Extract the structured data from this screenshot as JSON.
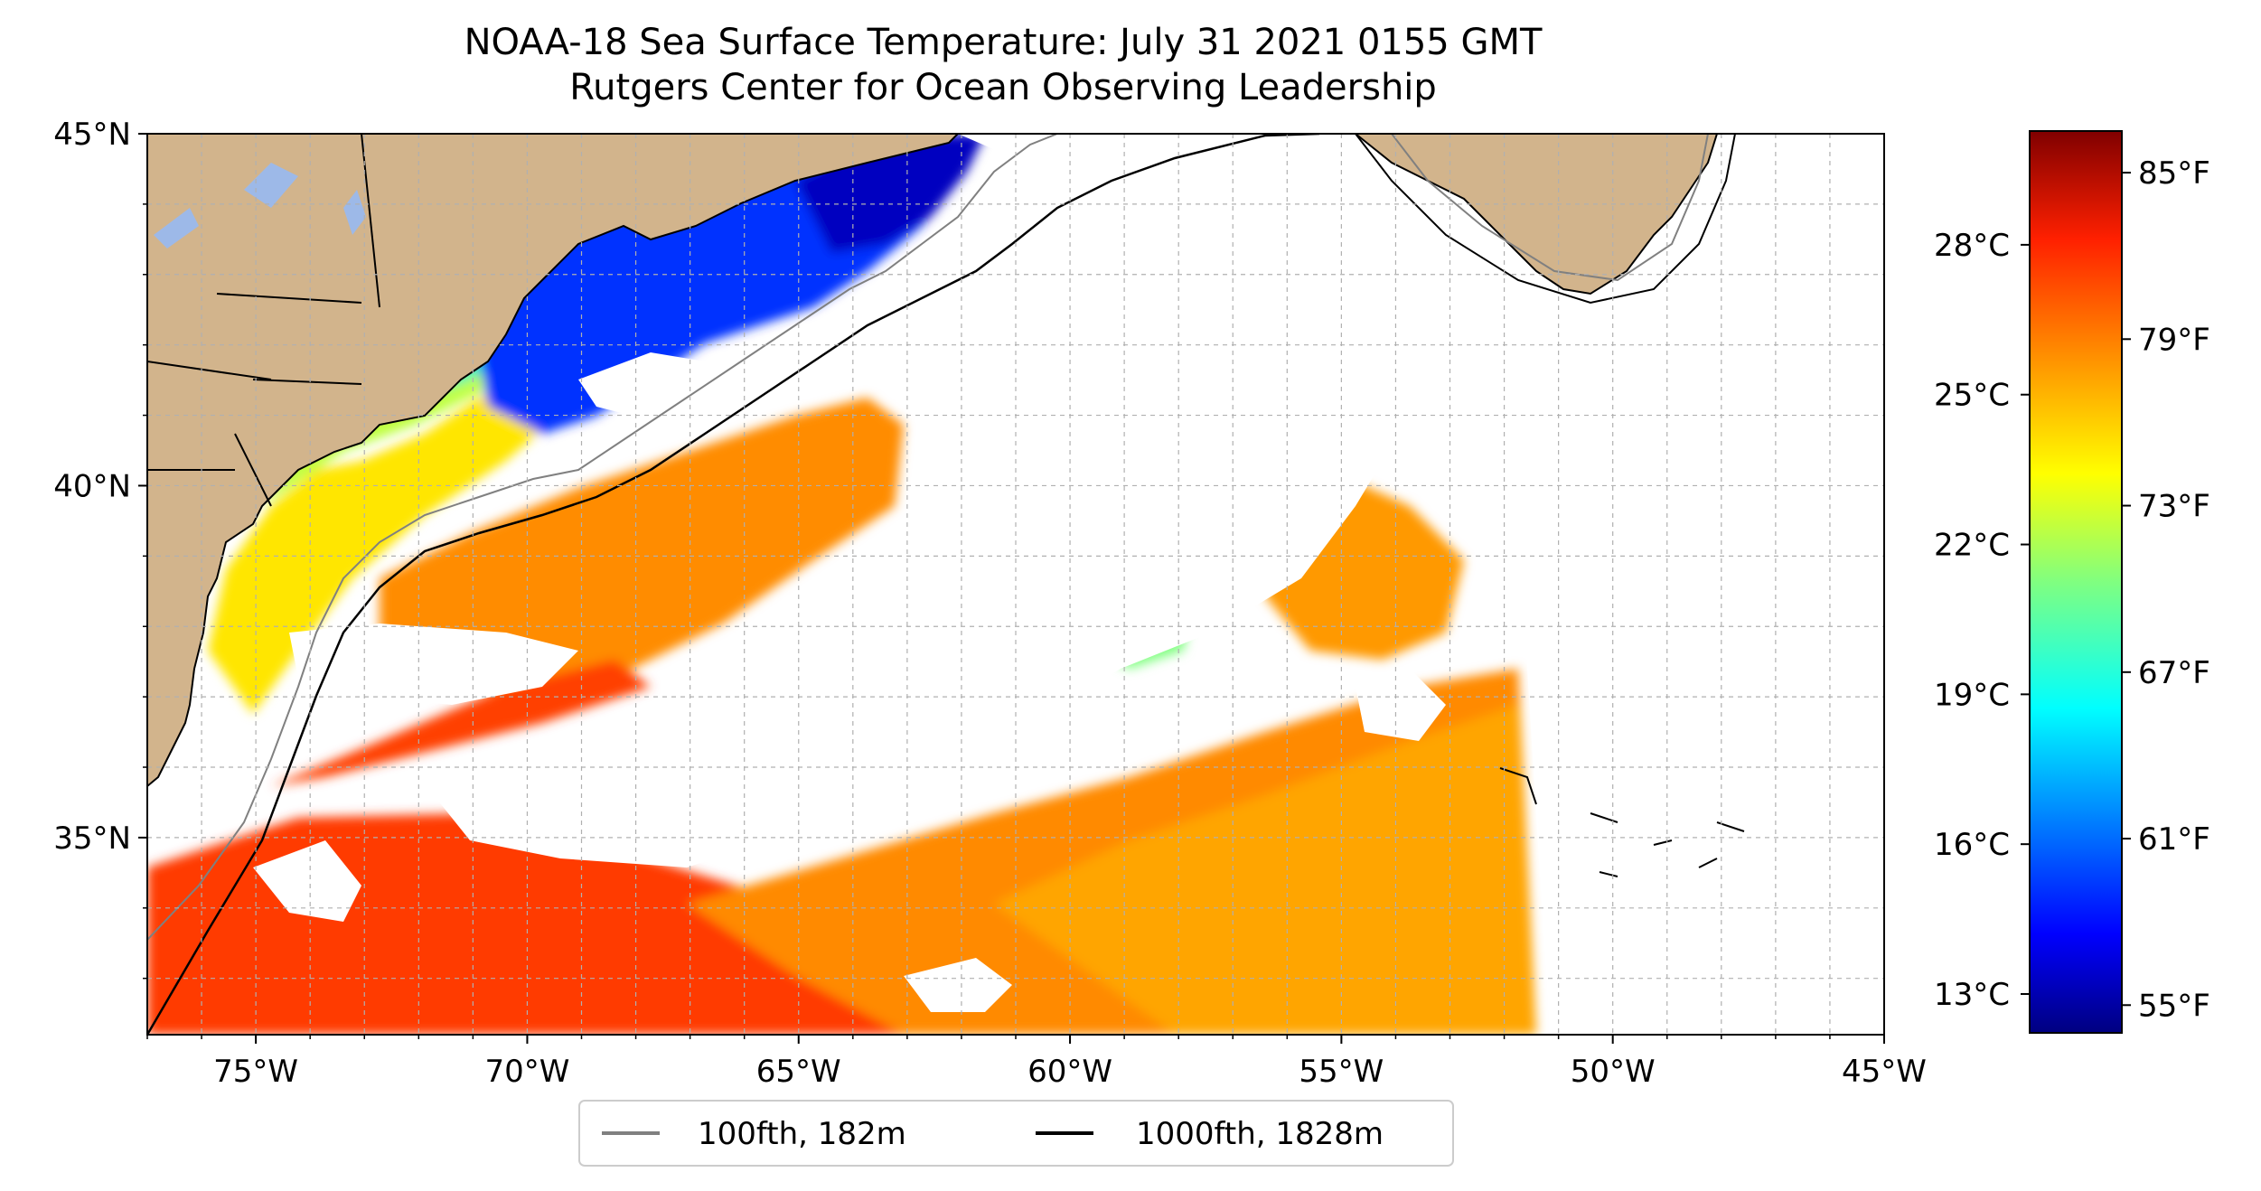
{
  "title": "NOAA-18 Sea Surface Temperature: July 31 2021 0155 GMT",
  "subtitle": "Rutgers Center for Ocean Observing Leadership",
  "map": {
    "lon_range": [
      -77,
      -45
    ],
    "lat_range": [
      32.2,
      45
    ],
    "lon_ticks": [
      {
        "value": -75,
        "label": "75°W"
      },
      {
        "value": -70,
        "label": "70°W"
      },
      {
        "value": -65,
        "label": "65°W"
      },
      {
        "value": -60,
        "label": "60°W"
      },
      {
        "value": -55,
        "label": "55°W"
      },
      {
        "value": -50,
        "label": "50°W"
      },
      {
        "value": -45,
        "label": "45°W"
      }
    ],
    "lat_ticks": [
      {
        "value": 45,
        "label": "45°N"
      },
      {
        "value": 40,
        "label": "40°N"
      },
      {
        "value": 35,
        "label": "35°N"
      }
    ],
    "gridlines": "dashed",
    "colors": {
      "land": "#D2B48C",
      "lakes": "#9DB9E8",
      "contour_100fth": "#808080",
      "contour_1000fth": "#000000"
    }
  },
  "legend": {
    "placement": "bottom-center",
    "items": [
      {
        "label": "100fth, 182m",
        "color": "#808080"
      },
      {
        "label": "1000fth, 1828m",
        "color": "#000000"
      }
    ]
  },
  "colorbar": {
    "colormap": "jet",
    "range_f": [
      54,
      86.5
    ],
    "celsius_ticks": [
      {
        "value": 28,
        "label": "28°C"
      },
      {
        "value": 25,
        "label": "25°C"
      },
      {
        "value": 22,
        "label": "22°C"
      },
      {
        "value": 19,
        "label": "19°C"
      },
      {
        "value": 16,
        "label": "16°C"
      },
      {
        "value": 13,
        "label": "13°C"
      }
    ],
    "fahrenheit_ticks": [
      {
        "value": 85,
        "label": "85°F"
      },
      {
        "value": 79,
        "label": "79°F"
      },
      {
        "value": 73,
        "label": "73°F"
      },
      {
        "value": 67,
        "label": "67°F"
      },
      {
        "value": 61,
        "label": "61°F"
      },
      {
        "value": 55,
        "label": "55°F"
      }
    ]
  }
}
